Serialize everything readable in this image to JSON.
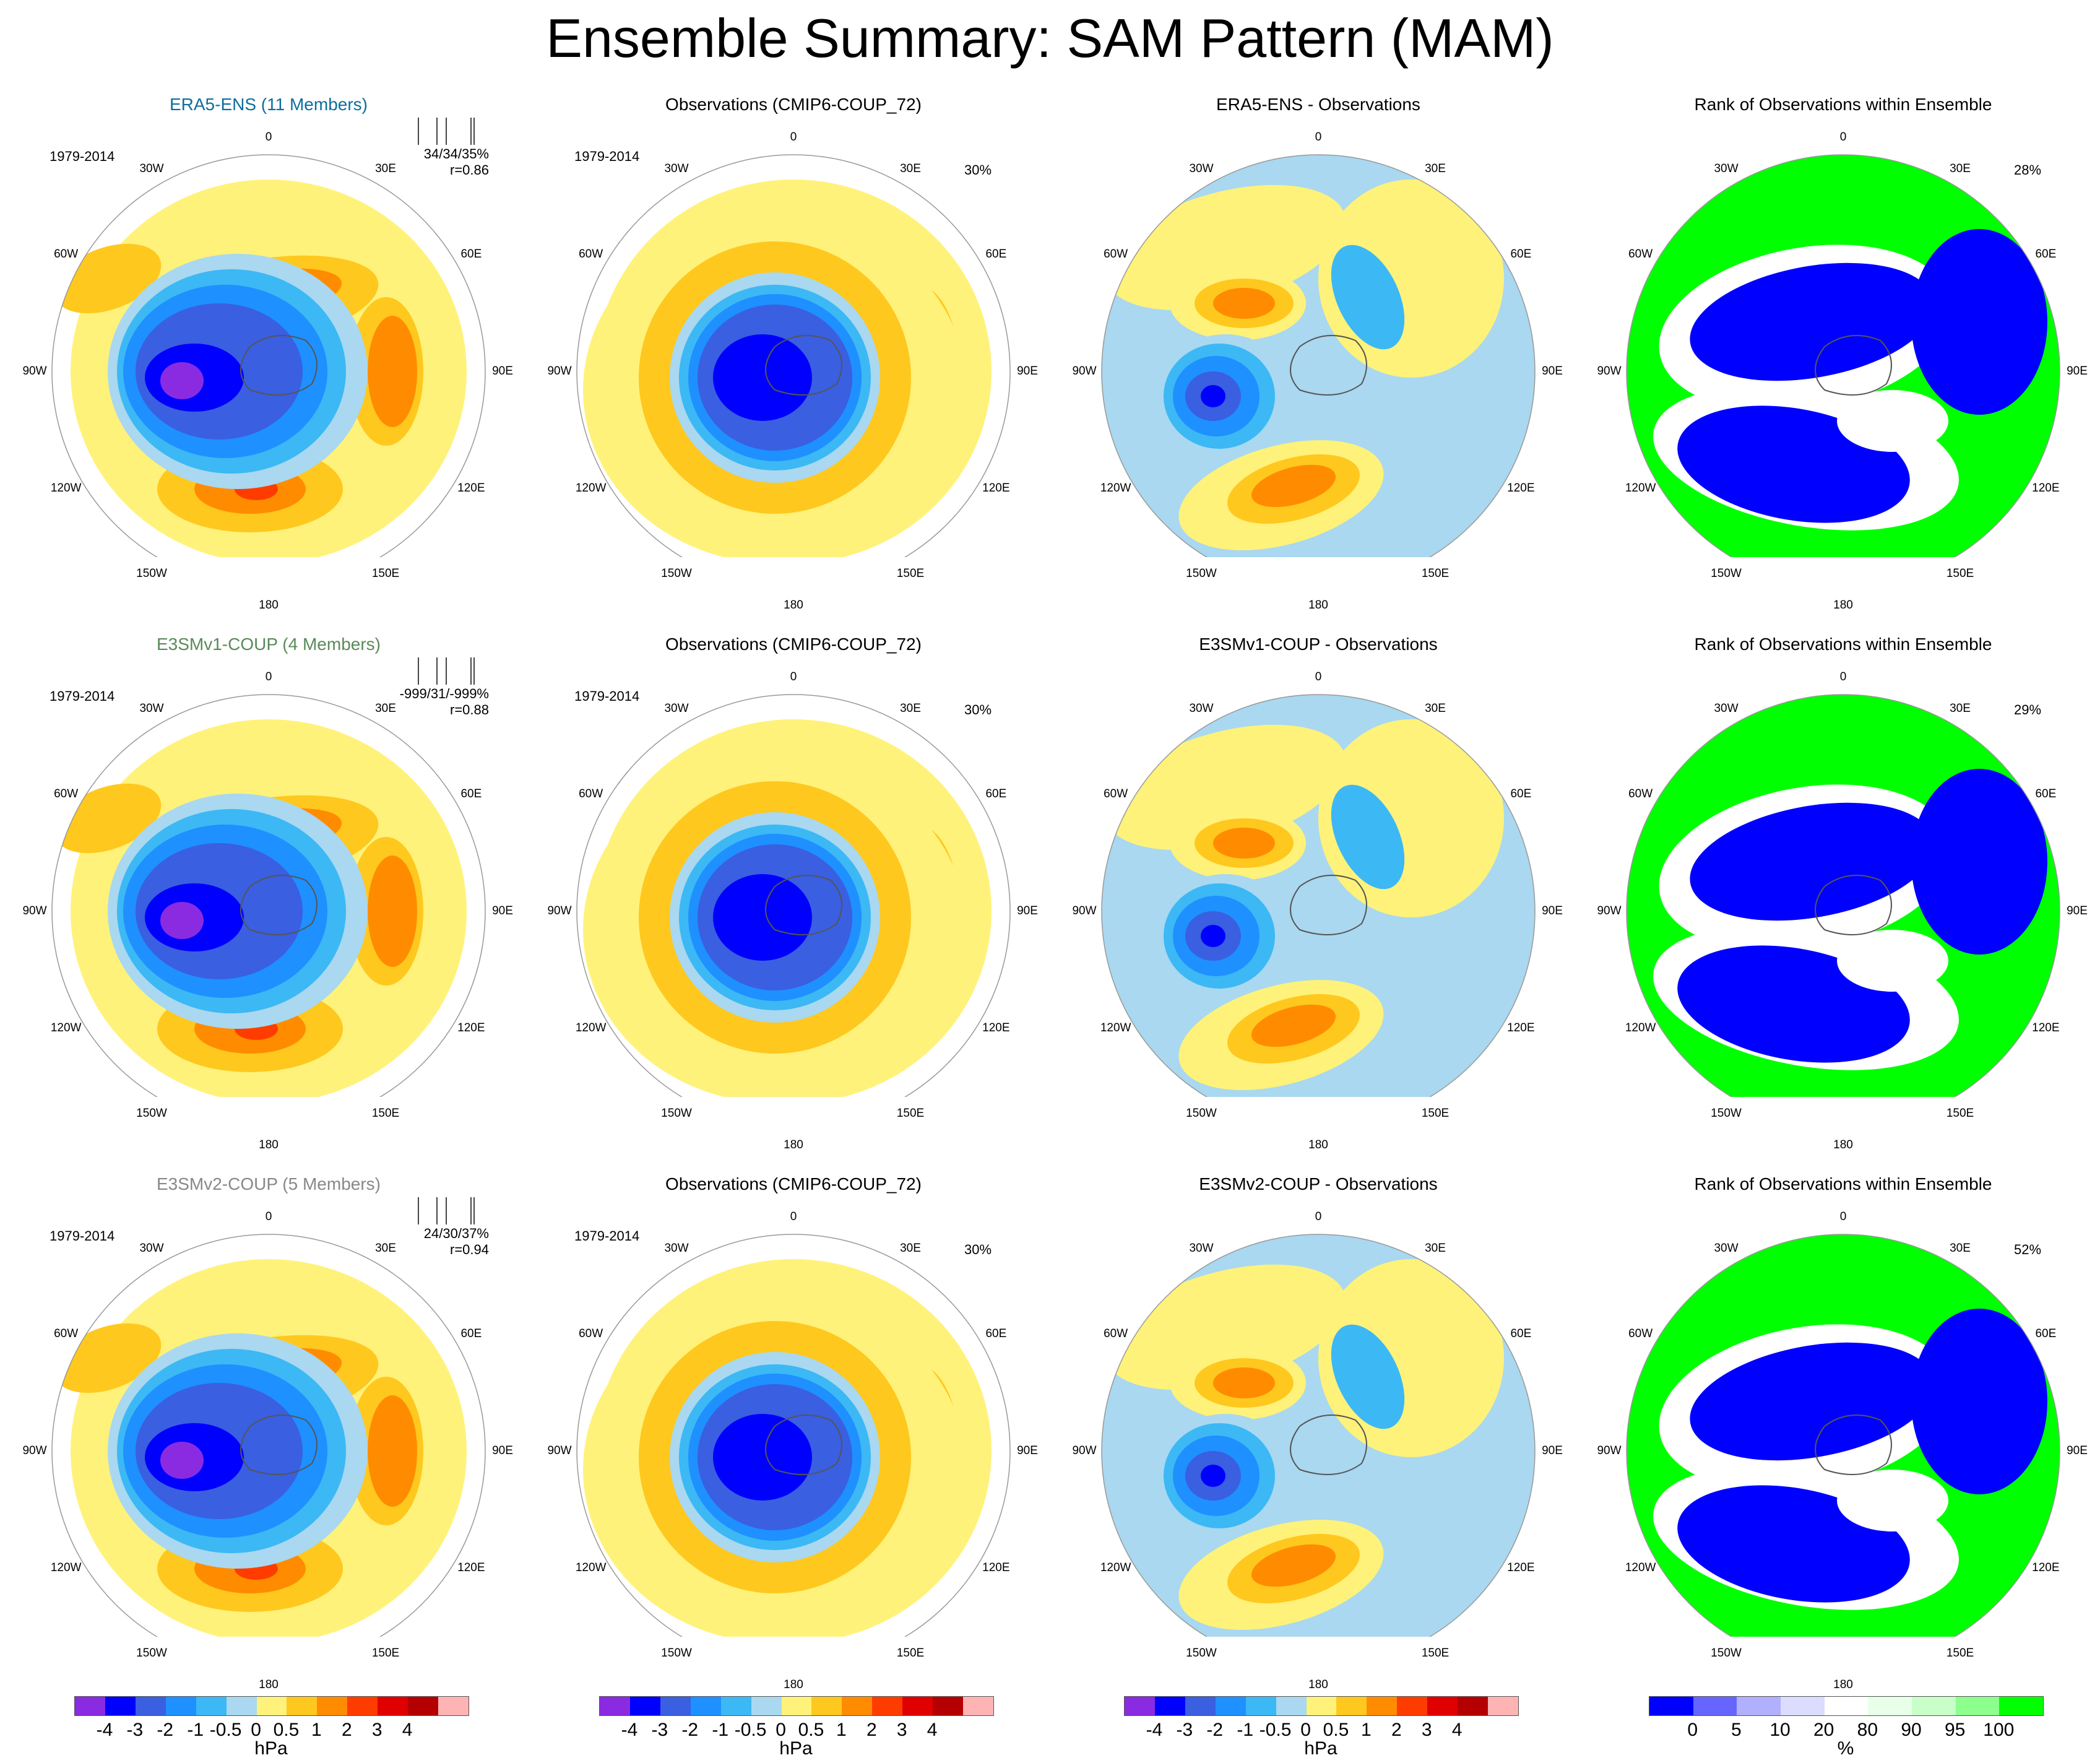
{
  "title": "Ensemble Summary: SAM Pattern (MAM)",
  "colors": {
    "diff": [
      "#8a2be2",
      "#0000ff",
      "#3a5fe0",
      "#1e90ff",
      "#3cb8f5",
      "#a9d8f0",
      "#fff27a",
      "#ffc81e",
      "#ff8c00",
      "#ff3c00",
      "#e00000",
      "#b40000",
      "#ffb4b4"
    ],
    "rank": [
      "#0000ff",
      "#6666ff",
      "#b0b0ff",
      "#dcdcff",
      "#ffffff",
      "#e8ffe8",
      "#c8ffc8",
      "#8cff8c",
      "#00ff00"
    ],
    "model1": "#0d6e9e",
    "model2": "#5a8a5a",
    "model3": "#888888"
  },
  "lon_labels": [
    "0",
    "30E",
    "60E",
    "90E",
    "120E",
    "150E",
    "180",
    "150W",
    "120W",
    "90W",
    "60W",
    "30W"
  ],
  "rows": [
    {
      "model_title": "ERA5-ENS (11 Members)",
      "obs_title": "Observations (CMIP6-COUP_72)",
      "diff_title": "ERA5-ENS - Observations",
      "rank_title": "Rank of Observations within Ensemble",
      "years": "1979-2014",
      "stats_line1": "34/34/35%",
      "stats_line2": "r=0.86",
      "obs_pct": "30%",
      "rank_pct": "28%"
    },
    {
      "model_title": "E3SMv1-COUP (4 Members)",
      "obs_title": "Observations (CMIP6-COUP_72)",
      "diff_title": "E3SMv1-COUP - Observations",
      "rank_title": "Rank of Observations within Ensemble",
      "years": "1979-2014",
      "stats_line1": "-999/31/-999%",
      "stats_line2": "r=0.88",
      "obs_pct": "30%",
      "rank_pct": "29%"
    },
    {
      "model_title": "E3SMv2-COUP (5 Members)",
      "obs_title": "Observations (CMIP6-COUP_72)",
      "diff_title": "E3SMv2-COUP - Observations",
      "rank_title": "Rank of Observations within Ensemble",
      "years": "1979-2014",
      "stats_line1": "24/30/37%",
      "stats_line2": "r=0.94",
      "obs_pct": "30%",
      "rank_pct": "52%"
    }
  ],
  "colorbar_hpa": {
    "ticks": [
      "-4",
      "-3",
      "-2",
      "-1",
      "-0.5",
      "0",
      "0.5",
      "1",
      "2",
      "3",
      "4"
    ],
    "unit": "hPa"
  },
  "colorbar_rank": {
    "ticks": [
      "0",
      "5",
      "10",
      "20",
      "80",
      "90",
      "95",
      "100"
    ],
    "unit": "%"
  }
}
